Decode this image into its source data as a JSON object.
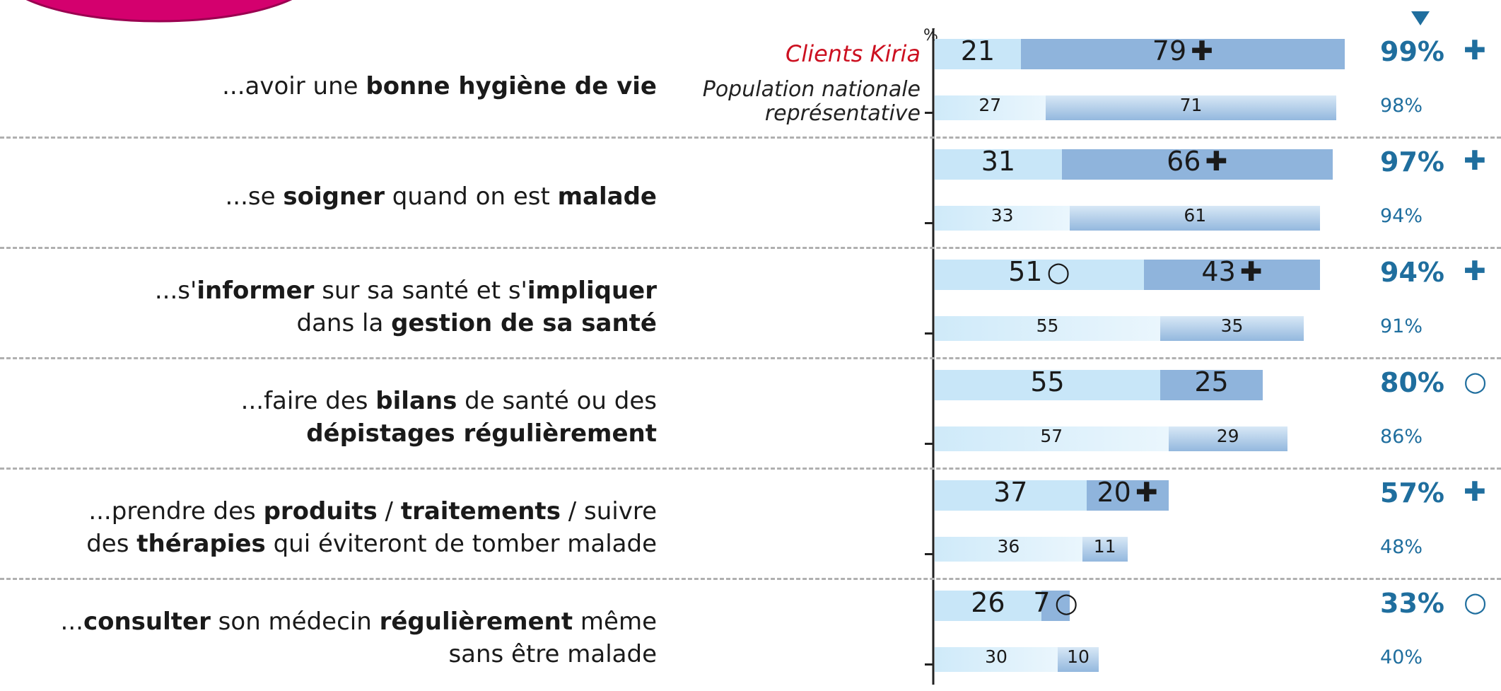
{
  "chart_data": {
    "type": "bar",
    "orientation": "horizontal",
    "stacked": true,
    "axis_label": "%",
    "xlim": [
      0,
      100
    ],
    "categories": [
      [
        [
          {
            "t": "...avoir une ",
            "b": false
          },
          {
            "t": "bonne hygiène de vie",
            "b": true
          }
        ]
      ],
      [
        [
          {
            "t": "...se ",
            "b": false
          },
          {
            "t": "soigner",
            "b": true
          },
          {
            "t": " quand on est ",
            "b": false
          },
          {
            "t": "malade",
            "b": true
          }
        ]
      ],
      [
        [
          {
            "t": "...s'",
            "b": false
          },
          {
            "t": "informer",
            "b": true
          },
          {
            "t": " sur sa santé et s'",
            "b": false
          },
          {
            "t": "impliquer",
            "b": true
          }
        ],
        [
          {
            "t": "dans la ",
            "b": false
          },
          {
            "t": "gestion de sa santé",
            "b": true
          }
        ]
      ],
      [
        [
          {
            "t": "...faire des ",
            "b": false
          },
          {
            "t": "bilans",
            "b": true
          },
          {
            "t": " de santé ou des",
            "b": false
          }
        ],
        [
          {
            "t": "dépistages régulièrement",
            "b": true
          }
        ]
      ],
      [
        [
          {
            "t": "...prendre des ",
            "b": false
          },
          {
            "t": "produits",
            "b": true
          },
          {
            "t": " / ",
            "b": false
          },
          {
            "t": "traitements",
            "b": true
          },
          {
            "t": " / suivre",
            "b": false
          }
        ],
        [
          {
            "t": "des ",
            "b": false
          },
          {
            "t": "thérapies",
            "b": true
          },
          {
            "t": " qui éviteront de tomber malade",
            "b": false
          }
        ]
      ],
      [
        [
          {
            "t": "...",
            "b": false
          },
          {
            "t": "consulter",
            "b": true
          },
          {
            "t": " son médecin ",
            "b": false
          },
          {
            "t": "régulièrement",
            "b": true
          },
          {
            "t": " même",
            "b": false
          }
        ],
        [
          {
            "t": "sans être malade",
            "b": false
          }
        ]
      ]
    ],
    "series": [
      {
        "name": "Clients Kiria",
        "name_color": "#cc1020",
        "light_color": "#c8e6f8",
        "dark_color": "#8fb4dc",
        "light": [
          21,
          31,
          51,
          55,
          37,
          26
        ],
        "dark": [
          79,
          66,
          43,
          25,
          20,
          7
        ],
        "light_marks": [
          null,
          null,
          "○",
          null,
          null,
          null
        ],
        "dark_marks": [
          "✚",
          "✚",
          "✚",
          null,
          "✚",
          "○"
        ],
        "totals": [
          99,
          97,
          94,
          80,
          57,
          33
        ],
        "total_labels": [
          "99%",
          "97%",
          "94%",
          "80%",
          "57%",
          "33%"
        ],
        "total_marks": [
          "✚",
          "✚",
          "✚",
          "○",
          "✚",
          "○"
        ]
      },
      {
        "name": "Population nationale représentative",
        "name_color": "#222222",
        "light_color": "#cfeaf9",
        "dark_color": "#93b8de",
        "light": [
          27,
          33,
          55,
          57,
          36,
          30
        ],
        "dark": [
          71,
          61,
          35,
          29,
          11,
          10
        ],
        "totals": [
          98,
          94,
          91,
          86,
          48,
          40
        ],
        "total_labels": [
          "98%",
          "94%",
          "91%",
          "86%",
          "48%",
          "40%"
        ]
      }
    ]
  }
}
